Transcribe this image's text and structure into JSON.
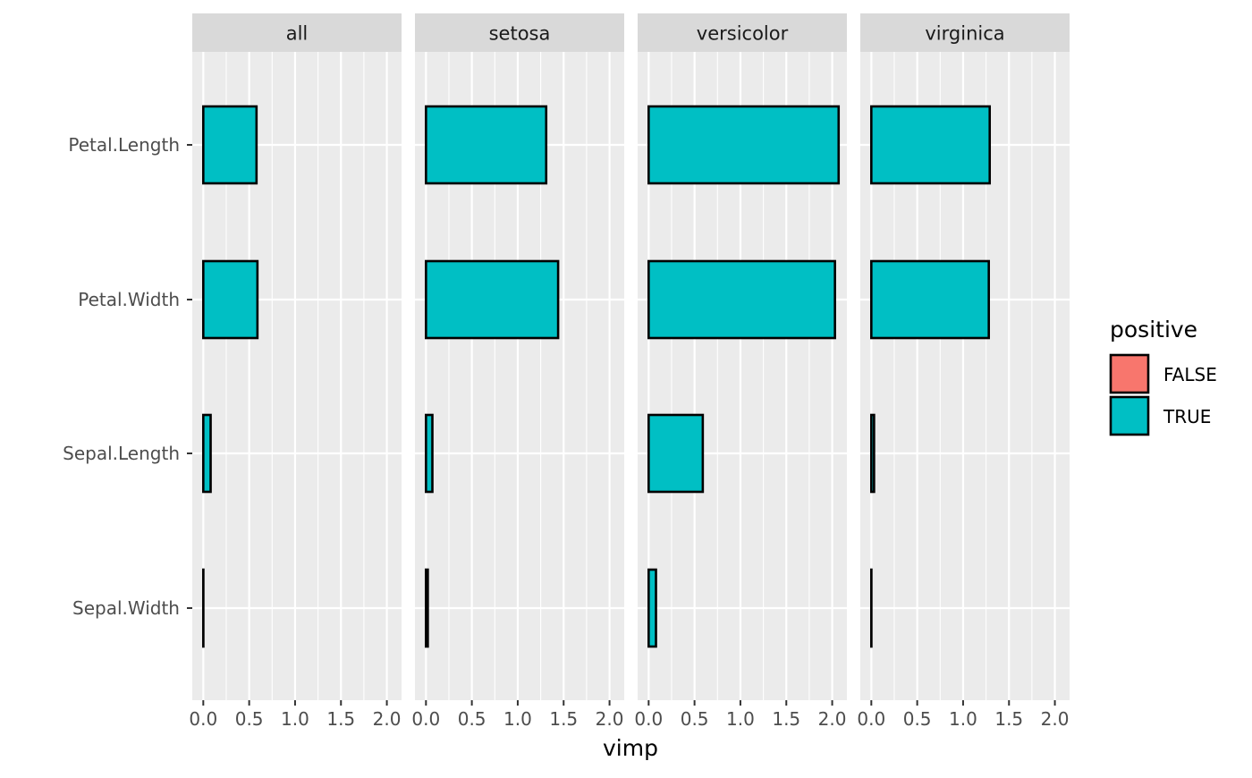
{
  "chart_data": {
    "type": "bar",
    "orientation": "horizontal",
    "facets": [
      "all",
      "setosa",
      "versicolor",
      "virginica"
    ],
    "categories": [
      "Petal.Length",
      "Petal.Width",
      "Sepal.Length",
      "Sepal.Width"
    ],
    "series": [
      {
        "facet": "all",
        "values": [
          0.58,
          0.59,
          0.08,
          0.0
        ]
      },
      {
        "facet": "setosa",
        "values": [
          1.31,
          1.44,
          0.07,
          0.02
        ]
      },
      {
        "facet": "versicolor",
        "values": [
          2.07,
          2.03,
          0.59,
          0.08
        ]
      },
      {
        "facet": "virginica",
        "values": [
          1.29,
          1.28,
          0.03,
          0.0
        ]
      }
    ],
    "x_ticks": [
      "0.0",
      "0.5",
      "1.0",
      "1.5",
      "2.0"
    ],
    "xlim": [
      -0.12,
      2.16
    ],
    "xlabel": "vimp",
    "legend": {
      "title": "positive",
      "entries": [
        {
          "label": "FALSE",
          "color": "#F8766D"
        },
        {
          "label": "TRUE",
          "color": "#00BFC4"
        }
      ],
      "placement": "right"
    },
    "grid": true,
    "colors": {
      "panel_background": "#EBEBEB",
      "strip_background": "#D9D9D9",
      "grid": "#FFFFFF",
      "bar_outline": "#000000",
      "bar_fill_true": "#00BFC4",
      "bar_fill_false": "#F8766D",
      "axis_text": "#4D4D4D",
      "strip_text": "#1A1A1A"
    }
  }
}
